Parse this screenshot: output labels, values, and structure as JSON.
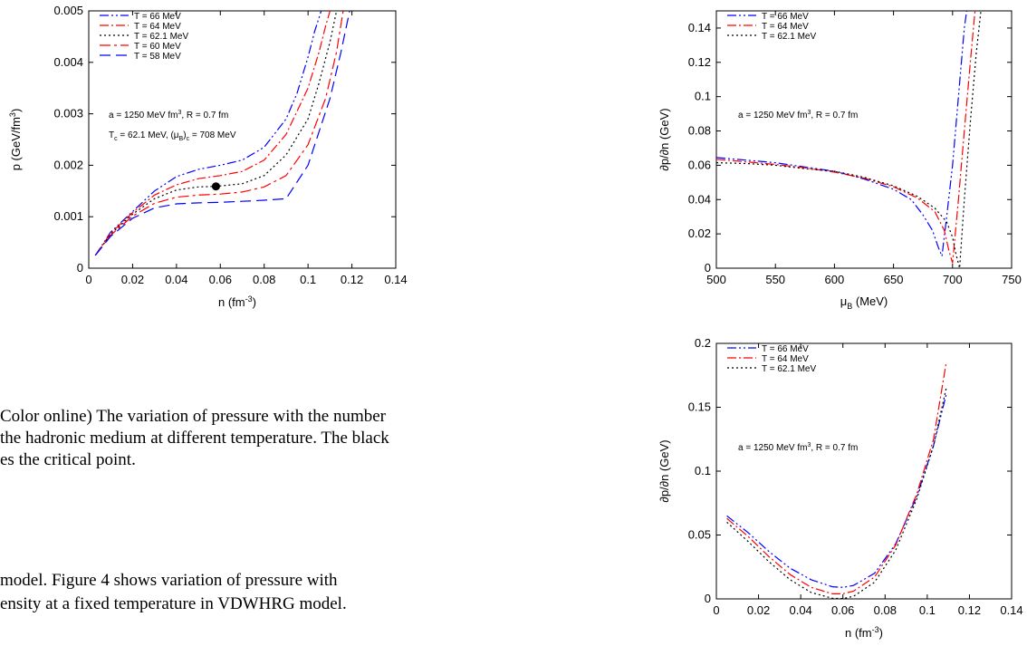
{
  "text": {
    "caption_lines": [
      "Color online) The variation of pressure with the number",
      "the hadronic medium at different temperature. The black",
      "es the critical point."
    ],
    "body_lines": [
      "model.   Figure 4 shows variation of pressure with",
      "ensity at a fixed temperature in VDWHRG model.",
      "                                                              "
    ]
  },
  "chart_data": [
    {
      "type": "line",
      "xlabel": "n (fm",
      "xlabel_sup": "-3",
      "xlabel_end": ")",
      "ylabel": "p (GeV/fm",
      "ylabel_sup": "3",
      "ylabel_end": ")",
      "xlim": [
        0,
        0.14
      ],
      "ylim": [
        0,
        0.005
      ],
      "xticks": [
        "0",
        "0.02",
        "0.04",
        "0.06",
        "0.08",
        "0.1",
        "0.12",
        "0.14"
      ],
      "yticks": [
        "0",
        "0.001",
        "0.002",
        "0.003",
        "0.004",
        "0.005"
      ],
      "annotation_line1": "a = 1250 MeV fm",
      "annotation_line1_sup": "3",
      "annotation_line1_end": ", R = 0.7 fm",
      "annotation_line2_a": "T",
      "annotation_line2_sub1": "c",
      "annotation_line2_b": " = 62.1 MeV, (μ",
      "annotation_line2_sub2": "B",
      "annotation_line2_c": ")",
      "annotation_line2_sub3": "c",
      "annotation_line2_d": " = 708 MeV",
      "critical_point": {
        "x": 0.058,
        "y": 0.00159
      },
      "series": [
        {
          "name": "T = 66 MeV",
          "color": "#0000ff",
          "dash": "10 3 2 3 2 3",
          "points": [
            [
              0.003,
              0.00025
            ],
            [
              0.01,
              0.0007
            ],
            [
              0.02,
              0.0011
            ],
            [
              0.03,
              0.0015
            ],
            [
              0.04,
              0.00178
            ],
            [
              0.05,
              0.00192
            ],
            [
              0.06,
              0.002
            ],
            [
              0.07,
              0.0021
            ],
            [
              0.08,
              0.00235
            ],
            [
              0.09,
              0.0029
            ],
            [
              0.095,
              0.0034
            ],
            [
              0.1,
              0.0041
            ],
            [
              0.103,
              0.0046
            ],
            [
              0.106,
              0.005
            ]
          ]
        },
        {
          "name": "T = 64 MeV",
          "color": "#ff0000",
          "dash": "10 3 2 3",
          "points": [
            [
              0.003,
              0.00025
            ],
            [
              0.01,
              0.00068
            ],
            [
              0.02,
              0.00108
            ],
            [
              0.03,
              0.00142
            ],
            [
              0.04,
              0.00162
            ],
            [
              0.05,
              0.00174
            ],
            [
              0.06,
              0.0018
            ],
            [
              0.07,
              0.00188
            ],
            [
              0.08,
              0.0021
            ],
            [
              0.09,
              0.0026
            ],
            [
              0.1,
              0.0035
            ],
            [
              0.105,
              0.0042
            ],
            [
              0.108,
              0.0047
            ],
            [
              0.11,
              0.005
            ]
          ]
        },
        {
          "name": "T = 62.1 MeV",
          "color": "#000000",
          "dash": "2 3",
          "points": [
            [
              0.003,
              0.00025
            ],
            [
              0.01,
              0.00066
            ],
            [
              0.02,
              0.00105
            ],
            [
              0.03,
              0.00135
            ],
            [
              0.04,
              0.00152
            ],
            [
              0.05,
              0.00158
            ],
            [
              0.058,
              0.00159
            ],
            [
              0.07,
              0.00164
            ],
            [
              0.08,
              0.0018
            ],
            [
              0.09,
              0.0022
            ],
            [
              0.1,
              0.0029
            ],
            [
              0.105,
              0.0036
            ],
            [
              0.11,
              0.0044
            ],
            [
              0.113,
              0.005
            ]
          ]
        },
        {
          "name": "T = 60 MeV",
          "color": "#ff0000",
          "dash": "12 4 3 4",
          "points": [
            [
              0.003,
              0.00025
            ],
            [
              0.01,
              0.00064
            ],
            [
              0.02,
              0.00101
            ],
            [
              0.03,
              0.00126
            ],
            [
              0.04,
              0.00138
            ],
            [
              0.05,
              0.00142
            ],
            [
              0.06,
              0.00144
            ],
            [
              0.07,
              0.00148
            ],
            [
              0.08,
              0.00158
            ],
            [
              0.09,
              0.0018
            ],
            [
              0.1,
              0.0024
            ],
            [
              0.108,
              0.0033
            ],
            [
              0.113,
              0.0042
            ],
            [
              0.116,
              0.005
            ]
          ]
        },
        {
          "name": "T = 58 MeV",
          "color": "#0000ff",
          "dash": "12 6",
          "points": [
            [
              0.003,
              0.00025
            ],
            [
              0.01,
              0.00062
            ],
            [
              0.02,
              0.00097
            ],
            [
              0.03,
              0.00117
            ],
            [
              0.04,
              0.00125
            ],
            [
              0.05,
              0.00127
            ],
            [
              0.06,
              0.00128
            ],
            [
              0.07,
              0.0013
            ],
            [
              0.08,
              0.00132
            ],
            [
              0.09,
              0.00135
            ],
            [
              0.1,
              0.002
            ],
            [
              0.11,
              0.0033
            ],
            [
              0.115,
              0.0042
            ],
            [
              0.119,
              0.005
            ]
          ]
        }
      ]
    },
    {
      "type": "line",
      "xlabel": "μ",
      "xlabel_sub": "B",
      "xlabel_end": " (MeV)",
      "ylabel": "∂p/∂n (GeV)",
      "xlim": [
        500,
        750
      ],
      "ylim": [
        0,
        0.15
      ],
      "xticks": [
        "500",
        "550",
        "600",
        "650",
        "700",
        "750"
      ],
      "yticks": [
        "0",
        "0.02",
        "0.04",
        "0.06",
        "0.08",
        "0.1",
        "0.12",
        "0.14"
      ],
      "annotation_line1": "a = 1250 MeV fm",
      "annotation_line1_sup": "3",
      "annotation_line1_end": ", R = 0.7 fm",
      "series": [
        {
          "name": "T = 66 MeV",
          "color": "#0000ff",
          "dash": "10 3 2 3 2 3",
          "points": [
            [
              500,
              0.0645
            ],
            [
              525,
              0.063
            ],
            [
              550,
              0.0615
            ],
            [
              575,
              0.059
            ],
            [
              600,
              0.0565
            ],
            [
              625,
              0.052
            ],
            [
              650,
              0.046
            ],
            [
              665,
              0.04
            ],
            [
              675,
              0.031
            ],
            [
              683,
              0.022
            ],
            [
              688,
              0.012
            ],
            [
              691,
              0.007
            ],
            [
              695,
              0.03
            ],
            [
              700,
              0.06
            ],
            [
              705,
              0.1
            ],
            [
              710,
              0.14
            ],
            [
              712,
              0.15
            ]
          ]
        },
        {
          "name": "T = 64 MeV",
          "color": "#ff0000",
          "dash": "10 3 2 3",
          "points": [
            [
              500,
              0.0635
            ],
            [
              525,
              0.062
            ],
            [
              550,
              0.0605
            ],
            [
              575,
              0.0585
            ],
            [
              600,
              0.056
            ],
            [
              625,
              0.0525
            ],
            [
              650,
              0.0475
            ],
            [
              670,
              0.041
            ],
            [
              685,
              0.033
            ],
            [
              693,
              0.022
            ],
            [
              697,
              0.01
            ],
            [
              700,
              0.003
            ],
            [
              705,
              0.04
            ],
            [
              710,
              0.08
            ],
            [
              715,
              0.12
            ],
            [
              719,
              0.15
            ]
          ]
        },
        {
          "name": "T = 62.1 MeV",
          "color": "#000000",
          "dash": "2 3",
          "points": [
            [
              500,
              0.0615
            ],
            [
              525,
              0.061
            ],
            [
              550,
              0.06
            ],
            [
              575,
              0.058
            ],
            [
              600,
              0.0565
            ],
            [
              625,
              0.053
            ],
            [
              650,
              0.048
            ],
            [
              670,
              0.042
            ],
            [
              685,
              0.035
            ],
            [
              695,
              0.027
            ],
            [
              700,
              0.018
            ],
            [
              703,
              0.008
            ],
            [
              706,
              0.0
            ],
            [
              710,
              0.04
            ],
            [
              715,
              0.085
            ],
            [
              720,
              0.125
            ],
            [
              724,
              0.15
            ]
          ]
        }
      ]
    },
    {
      "type": "line",
      "xlabel": "n (fm",
      "xlabel_sup": "-3",
      "xlabel_end": ")",
      "ylabel": "∂p/∂n (GeV)",
      "xlim": [
        0,
        0.14
      ],
      "ylim": [
        0,
        0.2
      ],
      "xticks": [
        "0",
        "0.02",
        "0.04",
        "0.06",
        "0.08",
        "0.1",
        "0.12",
        "0.14"
      ],
      "yticks": [
        "0",
        "0.05",
        "0.1",
        "0.15",
        "0.2"
      ],
      "annotation_line1": "a = 1250 MeV fm",
      "annotation_line1_sup": "3",
      "annotation_line1_end": ", R = 0.7 fm",
      "series": [
        {
          "name": "T = 66 MeV",
          "color": "#0000ff",
          "dash": "10 3 2 3 2 3",
          "points": [
            [
              0.005,
              0.065
            ],
            [
              0.015,
              0.052
            ],
            [
              0.025,
              0.037
            ],
            [
              0.035,
              0.024
            ],
            [
              0.045,
              0.015
            ],
            [
              0.055,
              0.0095
            ],
            [
              0.06,
              0.009
            ],
            [
              0.065,
              0.0105
            ],
            [
              0.075,
              0.02
            ],
            [
              0.085,
              0.043
            ],
            [
              0.095,
              0.08
            ],
            [
              0.103,
              0.12
            ],
            [
              0.109,
              0.16
            ]
          ]
        },
        {
          "name": "T = 64 MeV",
          "color": "#ff0000",
          "dash": "10 3 2 3",
          "points": [
            [
              0.005,
              0.063
            ],
            [
              0.015,
              0.049
            ],
            [
              0.025,
              0.033
            ],
            [
              0.035,
              0.019
            ],
            [
              0.045,
              0.009
            ],
            [
              0.055,
              0.004
            ],
            [
              0.06,
              0.004
            ],
            [
              0.065,
              0.006
            ],
            [
              0.075,
              0.017
            ],
            [
              0.085,
              0.042
            ],
            [
              0.095,
              0.082
            ],
            [
              0.103,
              0.125
            ],
            [
              0.109,
              0.185
            ]
          ]
        },
        {
          "name": "T = 62.1 MeV",
          "color": "#000000",
          "dash": "2 3",
          "points": [
            [
              0.005,
              0.06
            ],
            [
              0.015,
              0.045
            ],
            [
              0.025,
              0.029
            ],
            [
              0.035,
              0.015
            ],
            [
              0.045,
              0.005
            ],
            [
              0.055,
              0.0005
            ],
            [
              0.06,
              0.0002
            ],
            [
              0.065,
              0.002
            ],
            [
              0.075,
              0.013
            ],
            [
              0.085,
              0.038
            ],
            [
              0.095,
              0.078
            ],
            [
              0.103,
              0.12
            ],
            [
              0.109,
              0.165
            ]
          ]
        }
      ]
    }
  ]
}
